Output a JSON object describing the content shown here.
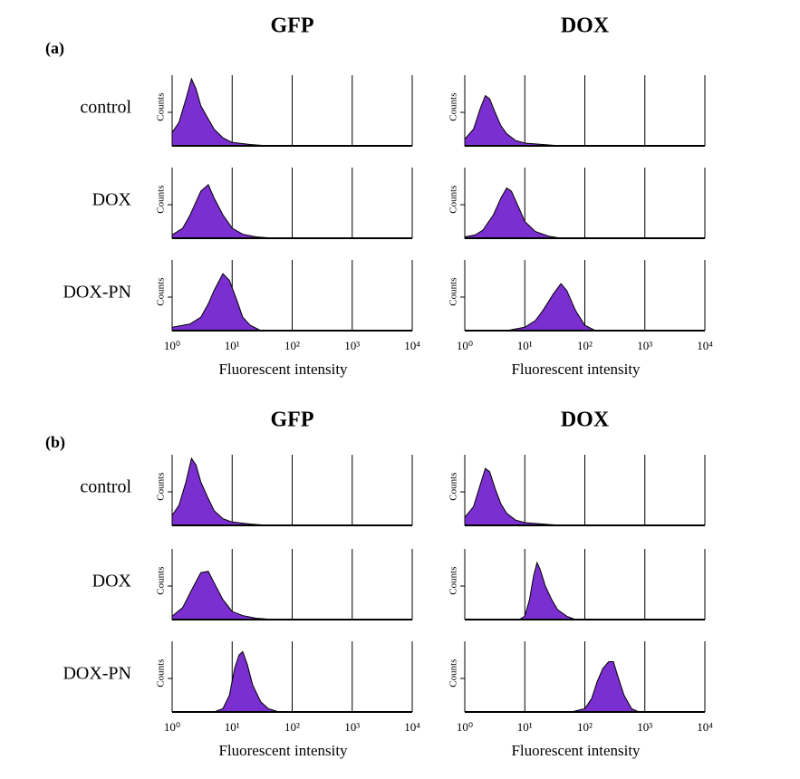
{
  "figure": {
    "panels": [
      {
        "label": "(a)",
        "columns": [
          "GFP",
          "DOX"
        ],
        "rows": [
          "control",
          "DOX",
          "DOX-PN"
        ]
      },
      {
        "label": "(b)",
        "columns": [
          "GFP",
          "DOX"
        ],
        "rows": [
          "control",
          "DOX",
          "DOX-PN"
        ]
      }
    ]
  },
  "chart_data": [
    {
      "type": "area",
      "y_label": "Counts",
      "xscale": "log",
      "xlim": [
        1,
        10000
      ],
      "ylim": [
        0,
        100
      ],
      "yticks": [
        50
      ],
      "xticks": [
        1,
        10,
        100,
        1000,
        10000
      ],
      "x": [
        1,
        1.3,
        1.7,
        2.1,
        2.5,
        3,
        4,
        5,
        7,
        10,
        20,
        40
      ],
      "series": [
        {
          "color": "#7b2fd0",
          "values": [
            20,
            35,
            70,
            100,
            85,
            60,
            40,
            25,
            12,
            5,
            2,
            0
          ]
        }
      ]
    },
    {
      "type": "area",
      "y_label": "Counts",
      "xscale": "log",
      "xlim": [
        1,
        10000
      ],
      "ylim": [
        0,
        100
      ],
      "yticks": [
        50
      ],
      "xticks": [
        1,
        10,
        100,
        1000,
        10000
      ],
      "x": [
        1,
        1.4,
        1.8,
        2.2,
        2.6,
        3.2,
        4,
        5,
        7,
        10,
        20,
        40
      ],
      "series": [
        {
          "color": "#7b2fd0",
          "values": [
            10,
            25,
            55,
            75,
            70,
            50,
            30,
            18,
            8,
            4,
            2,
            0
          ]
        }
      ]
    },
    {
      "type": "area",
      "y_label": "Counts",
      "xscale": "log",
      "xlim": [
        1,
        10000
      ],
      "ylim": [
        0,
        100
      ],
      "yticks": [
        50
      ],
      "xticks": [
        1,
        10,
        100,
        1000,
        10000
      ],
      "x": [
        1,
        1.5,
        2,
        3,
        4,
        5,
        7,
        10,
        15,
        25,
        50
      ],
      "series": [
        {
          "color": "#7b2fd0",
          "values": [
            5,
            15,
            35,
            70,
            80,
            60,
            35,
            15,
            6,
            2,
            0
          ]
        }
      ]
    },
    {
      "type": "area",
      "y_label": "Counts",
      "xscale": "log",
      "xlim": [
        1,
        10000
      ],
      "ylim": [
        0,
        100
      ],
      "yticks": [
        50
      ],
      "xticks": [
        1,
        10,
        100,
        1000,
        10000
      ],
      "x": [
        1,
        1.5,
        2,
        3,
        4,
        5,
        6,
        8,
        10,
        15,
        25,
        40
      ],
      "series": [
        {
          "color": "#7b2fd0",
          "values": [
            2,
            5,
            12,
            35,
            60,
            75,
            70,
            45,
            25,
            10,
            3,
            0
          ]
        }
      ]
    },
    {
      "type": "area",
      "y_label": "Counts",
      "x_label": "Fluorescent intensity",
      "xscale": "log",
      "xlim": [
        1,
        10000
      ],
      "ylim": [
        0,
        100
      ],
      "yticks": [
        50
      ],
      "xticks": [
        {
          "value": 1,
          "label": "10⁰"
        },
        {
          "value": 10,
          "label": "10¹"
        },
        {
          "value": 100,
          "label": "10²"
        },
        {
          "value": 1000,
          "label": "10³"
        },
        {
          "value": 10000,
          "label": "10⁴"
        }
      ],
      "x": [
        1,
        2,
        3,
        4,
        5,
        7,
        9,
        12,
        15,
        20,
        30
      ],
      "series": [
        {
          "color": "#7b2fd0",
          "values": [
            5,
            10,
            20,
            40,
            60,
            85,
            75,
            45,
            20,
            8,
            0
          ]
        }
      ]
    },
    {
      "type": "area",
      "y_label": "Counts",
      "x_label": "Fluorescent intensity",
      "xscale": "log",
      "xlim": [
        1,
        10000
      ],
      "ylim": [
        0,
        100
      ],
      "yticks": [
        50
      ],
      "xticks": [
        {
          "value": 1,
          "label": "10⁰"
        },
        {
          "value": 10,
          "label": "10¹"
        },
        {
          "value": 100,
          "label": "10²"
        },
        {
          "value": 1000,
          "label": "10³"
        },
        {
          "value": 10000,
          "label": "10⁴"
        }
      ],
      "x": [
        5,
        10,
        15,
        20,
        30,
        40,
        50,
        70,
        100,
        150
      ],
      "series": [
        {
          "color": "#7b2fd0",
          "values": [
            0,
            5,
            15,
            30,
            55,
            70,
            60,
            30,
            8,
            0
          ]
        }
      ]
    },
    {
      "type": "area",
      "y_label": "Counts",
      "xscale": "log",
      "xlim": [
        1,
        10000
      ],
      "ylim": [
        0,
        100
      ],
      "yticks": [
        50
      ],
      "xticks": [
        1,
        10,
        100,
        1000,
        10000
      ],
      "x": [
        1,
        1.3,
        1.7,
        2.1,
        2.5,
        3,
        4,
        5,
        7,
        10,
        20,
        40
      ],
      "series": [
        {
          "color": "#7b2fd0",
          "values": [
            15,
            30,
            65,
            100,
            90,
            65,
            40,
            22,
            10,
            5,
            2,
            0
          ]
        }
      ]
    },
    {
      "type": "area",
      "y_label": "Counts",
      "xscale": "log",
      "xlim": [
        1,
        10000
      ],
      "ylim": [
        0,
        100
      ],
      "yticks": [
        50
      ],
      "xticks": [
        1,
        10,
        100,
        1000,
        10000
      ],
      "x": [
        1,
        1.4,
        1.8,
        2.2,
        2.6,
        3.2,
        4,
        5,
        7,
        10,
        20,
        40
      ],
      "series": [
        {
          "color": "#7b2fd0",
          "values": [
            12,
            28,
            60,
            85,
            80,
            55,
            32,
            18,
            8,
            4,
            2,
            0
          ]
        }
      ]
    },
    {
      "type": "area",
      "y_label": "Counts",
      "xscale": "log",
      "xlim": [
        1,
        10000
      ],
      "ylim": [
        0,
        100
      ],
      "yticks": [
        50
      ],
      "xticks": [
        1,
        10,
        100,
        1000,
        10000
      ],
      "x": [
        1,
        1.5,
        2,
        3,
        4,
        5,
        7,
        10,
        15,
        25,
        50
      ],
      "series": [
        {
          "color": "#7b2fd0",
          "values": [
            5,
            18,
            40,
            70,
            72,
            55,
            30,
            12,
            6,
            2,
            0
          ]
        }
      ]
    },
    {
      "type": "area",
      "y_label": "Counts",
      "xscale": "log",
      "xlim": [
        1,
        10000
      ],
      "ylim": [
        0,
        100
      ],
      "yticks": [
        50
      ],
      "xticks": [
        1,
        10,
        100,
        1000,
        10000
      ],
      "x": [
        8,
        10,
        12,
        14,
        16,
        18,
        22,
        28,
        35,
        50,
        70
      ],
      "series": [
        {
          "color": "#7b2fd0",
          "values": [
            0,
            5,
            30,
            65,
            85,
            75,
            50,
            30,
            15,
            5,
            0
          ]
        }
      ]
    },
    {
      "type": "area",
      "y_label": "Counts",
      "x_label": "Fluorescent intensity",
      "xscale": "log",
      "xlim": [
        1,
        10000
      ],
      "ylim": [
        0,
        100
      ],
      "yticks": [
        50
      ],
      "xticks": [
        {
          "value": 1,
          "label": "10⁰"
        },
        {
          "value": 10,
          "label": "10¹"
        },
        {
          "value": 100,
          "label": "10²"
        },
        {
          "value": 1000,
          "label": "10³"
        },
        {
          "value": 10000,
          "label": "10⁴"
        }
      ],
      "x": [
        5,
        7,
        9,
        11,
        13,
        15,
        18,
        22,
        30,
        40,
        60
      ],
      "series": [
        {
          "color": "#7b2fd0",
          "values": [
            0,
            5,
            25,
            65,
            85,
            90,
            70,
            40,
            15,
            5,
            0
          ]
        }
      ]
    },
    {
      "type": "area",
      "y_label": "Counts",
      "x_label": "Fluorescent intensity",
      "xscale": "log",
      "xlim": [
        1,
        10000
      ],
      "ylim": [
        0,
        100
      ],
      "yticks": [
        50
      ],
      "xticks": [
        {
          "value": 1,
          "label": "10⁰"
        },
        {
          "value": 10,
          "label": "10¹"
        },
        {
          "value": 100,
          "label": "10²"
        },
        {
          "value": 1000,
          "label": "10³"
        },
        {
          "value": 10000,
          "label": "10⁴"
        }
      ],
      "x": [
        60,
        100,
        130,
        160,
        200,
        250,
        300,
        350,
        450,
        600,
        800
      ],
      "series": [
        {
          "color": "#7b2fd0",
          "values": [
            0,
            5,
            20,
            45,
            65,
            75,
            75,
            55,
            25,
            5,
            0
          ]
        }
      ]
    }
  ]
}
